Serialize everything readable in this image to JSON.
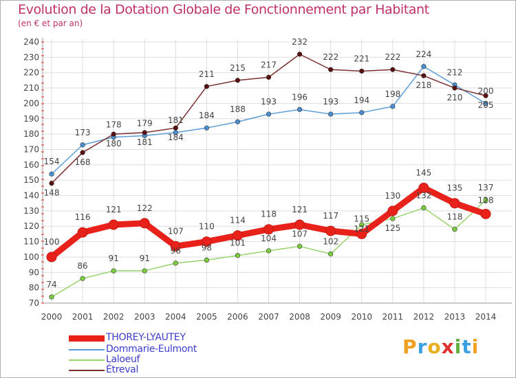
{
  "header": {
    "title": "Evolution de la Dotation Globale de Fonctionnement par Habitant",
    "subtitle": "(en € et par an)"
  },
  "chart_data": {
    "type": "line",
    "title": "Evolution de la Dotation Globale de Fonctionnement par Habitant",
    "subtitle": "(en € et par an)",
    "xlabel": "",
    "ylabel": "",
    "x": [
      2000,
      2001,
      2002,
      2003,
      2004,
      2005,
      2006,
      2007,
      2008,
      2009,
      2010,
      2011,
      2012,
      2013,
      2014
    ],
    "ylim": [
      70,
      240
    ],
    "yticks": [
      70,
      80,
      90,
      100,
      110,
      120,
      130,
      140,
      150,
      160,
      170,
      180,
      190,
      200,
      210,
      220,
      230,
      240
    ],
    "grid": true,
    "series": [
      {
        "name": "Dommarie-Eulmont",
        "color": "#5b9bd5",
        "marker": "#4a90d0",
        "label_values": [
          "154",
          "173",
          "178",
          "179",
          "181",
          "184",
          "188",
          "193",
          "196",
          "193",
          "194",
          "198",
          "224",
          "212",
          "200"
        ],
        "values": [
          154,
          173,
          178,
          179,
          181,
          184,
          188,
          193,
          196,
          193,
          194,
          198,
          224,
          212,
          200
        ]
      },
      {
        "name": "Etreval",
        "color": "#7a2e2e",
        "marker": "#5a1010",
        "label_values": [
          "148",
          "168",
          "180",
          "181",
          "184",
          "211",
          "215",
          "217",
          "232",
          "222",
          "221",
          "222",
          "218",
          "210",
          "205"
        ],
        "values": [
          148,
          168,
          180,
          181,
          184,
          211,
          215,
          217,
          232,
          222,
          221,
          222,
          218,
          210,
          205
        ]
      },
      {
        "name": "Laloeuf",
        "color": "#96d46a",
        "marker": "#7ccf3c",
        "label_values": [
          "74",
          "86",
          "91",
          "91",
          "96",
          "98",
          "101",
          "104",
          "107",
          "102",
          "121",
          "125",
          "132",
          "118",
          "137"
        ],
        "values": [
          74,
          86,
          91,
          91,
          96,
          98,
          101,
          104,
          107,
          102,
          121,
          125,
          132,
          118,
          137
        ]
      },
      {
        "name": "THOREY-LYAUTEY",
        "color": "#e8221a",
        "marker": "#e8221a",
        "label_values": [
          "100",
          "116",
          "121",
          "122",
          "107",
          "110",
          "114",
          "118",
          "121",
          "117",
          "115",
          "130",
          "145",
          "135",
          "128"
        ],
        "values": [
          100,
          116,
          121,
          122,
          107,
          110,
          114,
          118,
          121,
          117,
          115,
          130,
          145,
          135,
          128
        ]
      }
    ],
    "legend_position": "bottom-left"
  },
  "legend": {
    "items": [
      {
        "label": "THOREY-LYAUTEY",
        "color": "#e8221a"
      },
      {
        "label": "Dommarie-Eulmont",
        "color": "#5b9bd5"
      },
      {
        "label": "Laloeuf",
        "color": "#96d46a"
      },
      {
        "label": "Étreval",
        "color": "#7a2e2e"
      }
    ]
  },
  "logo": {
    "letters": [
      "P",
      "r",
      "o",
      "x",
      "i",
      "t",
      "i"
    ],
    "colors": [
      "#f0a020",
      "#3aa0e0",
      "#e8b020",
      "#e03030",
      "#60b040",
      "#3aa0e0",
      "#f0a020"
    ]
  }
}
